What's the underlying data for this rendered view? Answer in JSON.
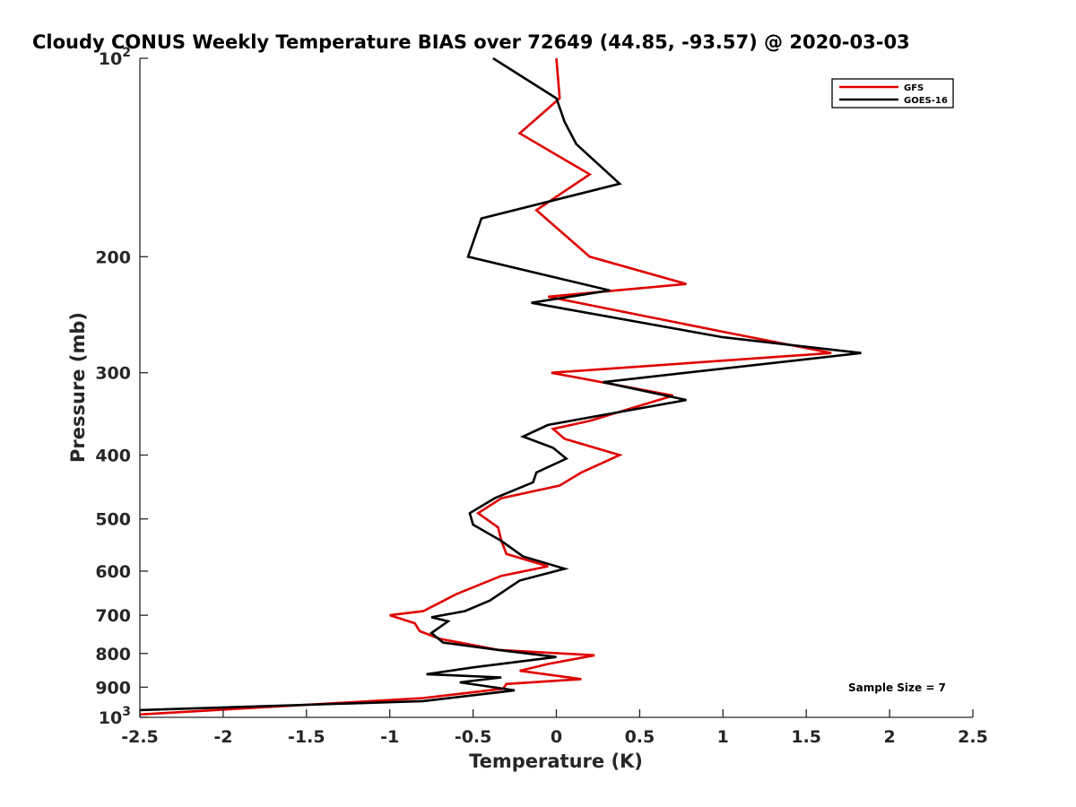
{
  "chart_data": {
    "type": "line",
    "title": "Cloudy CONUS Weekly Temperature BIAS over 72649 (44.85, -93.57) @ 2020-03-03",
    "xlabel": "Temperature (K)",
    "ylabel": "Pressure (mb)",
    "xlim": [
      -2.5,
      2.5
    ],
    "ylim": [
      100,
      1000
    ],
    "y_scale": "log",
    "y_reversed": true,
    "grid": false,
    "legend_position": "top-right",
    "x_ticks": [
      "-2.5",
      "-2",
      "-1.5",
      "-1",
      "-0.5",
      "0",
      "0.5",
      "1",
      "1.5",
      "2",
      "2.5"
    ],
    "y_ticks": [
      {
        "value": 100,
        "base": "10",
        "exp": "2"
      },
      {
        "value": 200,
        "label": "200"
      },
      {
        "value": 300,
        "label": "300"
      },
      {
        "value": 400,
        "label": "400"
      },
      {
        "value": 500,
        "label": "500"
      },
      {
        "value": 600,
        "label": "600"
      },
      {
        "value": 700,
        "label": "700"
      },
      {
        "value": 800,
        "label": "800"
      },
      {
        "value": 900,
        "label": "900"
      },
      {
        "value": 1000,
        "base": "10",
        "exp": "3"
      }
    ],
    "series": [
      {
        "name": "GFS",
        "color": "#e00000",
        "points": [
          [
            0.0,
            100
          ],
          [
            0.02,
            115
          ],
          [
            -0.22,
            130
          ],
          [
            0.2,
            150
          ],
          [
            -0.12,
            170
          ],
          [
            0.2,
            200
          ],
          [
            0.78,
            220
          ],
          [
            -0.05,
            230
          ],
          [
            1.0,
            260
          ],
          [
            1.65,
            280
          ],
          [
            -0.03,
            300
          ],
          [
            0.7,
            325
          ],
          [
            0.2,
            355
          ],
          [
            -0.02,
            365
          ],
          [
            0.05,
            378
          ],
          [
            0.38,
            400
          ],
          [
            0.15,
            425
          ],
          [
            0.02,
            445
          ],
          [
            -0.33,
            465
          ],
          [
            -0.47,
            490
          ],
          [
            -0.35,
            515
          ],
          [
            -0.33,
            540
          ],
          [
            -0.3,
            565
          ],
          [
            -0.05,
            590
          ],
          [
            -0.33,
            610
          ],
          [
            -0.6,
            650
          ],
          [
            -0.7,
            670
          ],
          [
            -0.8,
            690
          ],
          [
            -1.0,
            700
          ],
          [
            -0.85,
            720
          ],
          [
            -0.82,
            740
          ],
          [
            -0.7,
            760
          ],
          [
            -0.35,
            790
          ],
          [
            0.23,
            805
          ],
          [
            -0.05,
            830
          ],
          [
            -0.22,
            850
          ],
          [
            0.15,
            875
          ],
          [
            -0.3,
            890
          ],
          [
            -0.32,
            905
          ],
          [
            -0.8,
            935
          ],
          [
            -2.5,
            990
          ]
        ]
      },
      {
        "name": "GOES-16",
        "color": "#000000",
        "points": [
          [
            -0.38,
            100
          ],
          [
            0.0,
            115
          ],
          [
            0.05,
            125
          ],
          [
            0.12,
            135
          ],
          [
            0.38,
            155
          ],
          [
            -0.45,
            175
          ],
          [
            -0.53,
            200
          ],
          [
            0.32,
            225
          ],
          [
            -0.15,
            235
          ],
          [
            1.0,
            265
          ],
          [
            1.83,
            280
          ],
          [
            0.28,
            310
          ],
          [
            0.78,
            330
          ],
          [
            -0.05,
            360
          ],
          [
            -0.2,
            375
          ],
          [
            -0.02,
            390
          ],
          [
            0.06,
            405
          ],
          [
            -0.12,
            425
          ],
          [
            -0.14,
            440
          ],
          [
            -0.37,
            465
          ],
          [
            -0.52,
            490
          ],
          [
            -0.5,
            510
          ],
          [
            -0.33,
            540
          ],
          [
            -0.2,
            570
          ],
          [
            0.05,
            595
          ],
          [
            -0.22,
            620
          ],
          [
            -0.4,
            665
          ],
          [
            -0.55,
            690
          ],
          [
            -0.75,
            705
          ],
          [
            -0.65,
            715
          ],
          [
            -0.75,
            745
          ],
          [
            -0.68,
            770
          ],
          [
            -0.35,
            790
          ],
          [
            0.0,
            810
          ],
          [
            -0.5,
            840
          ],
          [
            -0.78,
            860
          ],
          [
            -0.33,
            870
          ],
          [
            -0.58,
            885
          ],
          [
            -0.25,
            910
          ],
          [
            -0.8,
            945
          ],
          [
            -2.5,
            975
          ]
        ]
      }
    ],
    "annotations": [
      "Sample Size = 7"
    ]
  }
}
